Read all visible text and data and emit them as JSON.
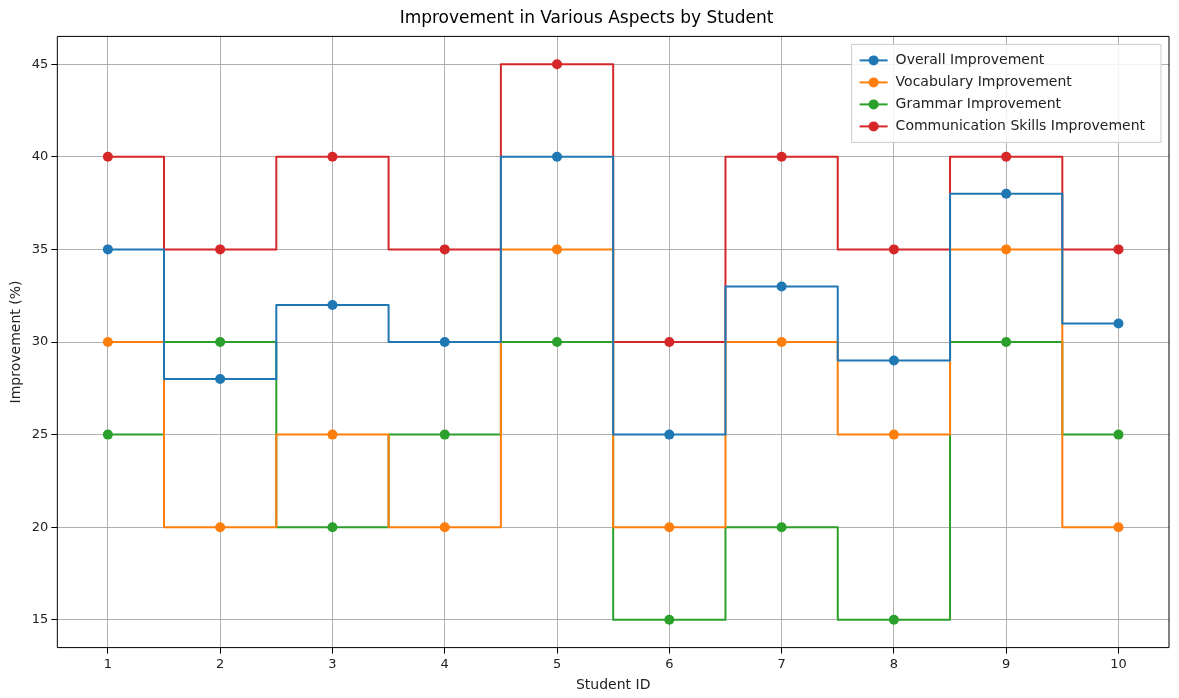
{
  "chart_data": {
    "type": "step",
    "title": "Improvement in Various Aspects by Student",
    "xlabel": "Student ID",
    "ylabel": "Improvement (%)",
    "x": [
      1,
      2,
      3,
      4,
      5,
      6,
      7,
      8,
      9,
      10
    ],
    "series": [
      {
        "name": "Overall Improvement",
        "color": "#1f77b4",
        "values": [
          35,
          28,
          32,
          30,
          40,
          25,
          33,
          29,
          38,
          31
        ]
      },
      {
        "name": "Vocabulary Improvement",
        "color": "#ff7f0e",
        "values": [
          30,
          20,
          25,
          20,
          35,
          20,
          30,
          25,
          35,
          20
        ]
      },
      {
        "name": "Grammar Improvement",
        "color": "#2ca02c",
        "values": [
          25,
          30,
          20,
          25,
          30,
          15,
          20,
          15,
          30,
          25
        ]
      },
      {
        "name": "Communication Skills Improvement",
        "color": "#d62728",
        "values": [
          40,
          35,
          40,
          35,
          45,
          30,
          40,
          35,
          40,
          35
        ]
      }
    ],
    "xlim": [
      0.55,
      10.45
    ],
    "xticks": [
      1,
      2,
      3,
      4,
      5,
      6,
      7,
      8,
      9,
      10
    ],
    "ylim": [
      13.5,
      46.5
    ],
    "yticks": [
      15,
      20,
      25,
      30,
      35,
      40,
      45
    ],
    "grid": true,
    "legend": "top right",
    "marker": "circle",
    "line_style": "solid"
  }
}
